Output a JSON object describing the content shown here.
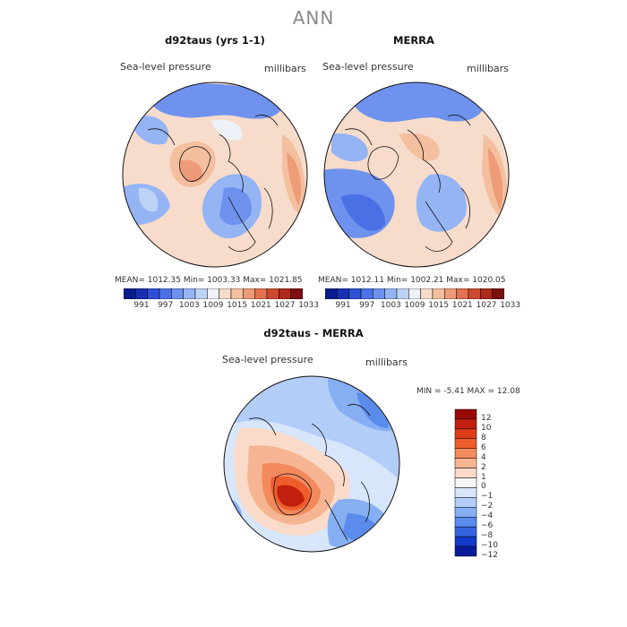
{
  "figure_title": "ANN",
  "panels": [
    {
      "title": "d92taus (yrs 1-1)",
      "variable": "Sea-level pressure",
      "units": "millibars",
      "stats": "MEAN= 1012.35   Min= 1003.33   Max= 1021.85"
    },
    {
      "title": "MERRA",
      "variable": "Sea-level pressure",
      "units": "millibars",
      "stats": "MEAN= 1012.11   Min= 1002.21   Max= 1020.05"
    }
  ],
  "diff_panel": {
    "title": "d92taus - MERRA",
    "variable": "Sea-level pressure",
    "units": "millibars",
    "stats": "MIN =   -5.41  MAX =   12.08"
  },
  "colorbar_top": {
    "colors": [
      "#081d8b",
      "#1a2fb0",
      "#2c50d6",
      "#4a70e6",
      "#6e92ee",
      "#94b4f4",
      "#bcd3f8",
      "#eef2f8",
      "#f7dccb",
      "#f4bf9f",
      "#ee9b78",
      "#e2714f",
      "#cc4a30",
      "#aa2a1c",
      "#7c1010"
    ],
    "labels": [
      "991",
      "997",
      "1003",
      "1009",
      "1015",
      "1021",
      "1027",
      "1033"
    ]
  },
  "colorbar_diff": {
    "colors": [
      "#9a0a06",
      "#c2200f",
      "#dc3d16",
      "#ee5e2c",
      "#f28a5e",
      "#f6b592",
      "#fadbc9",
      "#f6f6f6",
      "#d7e6fb",
      "#b2cdf8",
      "#86aef3",
      "#5b8bec",
      "#3563e0",
      "#163bcb",
      "#0a1b99"
    ],
    "labels": [
      "12",
      "10",
      "8",
      "6",
      "4",
      "2",
      "1",
      "0",
      "−1",
      "−2",
      "−4",
      "−6",
      "−8",
      "−10",
      "−12"
    ]
  }
}
